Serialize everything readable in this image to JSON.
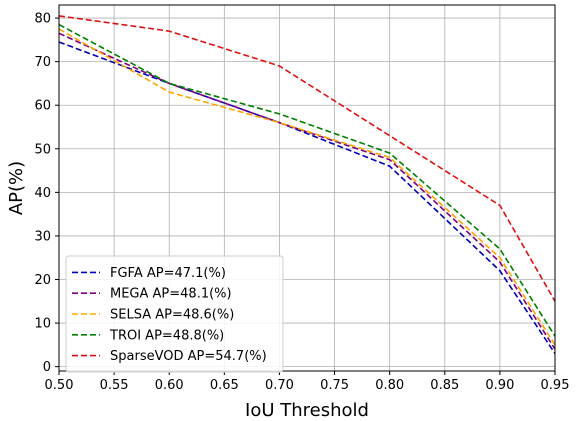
{
  "chart_data": {
    "type": "line",
    "xlabel": "IoU Threshold",
    "ylabel": "AP(%)",
    "xlim": [
      0.5,
      0.95
    ],
    "ylim": [
      -1,
      83
    ],
    "xticks": [
      "0.50",
      "0.55",
      "0.60",
      "0.65",
      "0.70",
      "0.75",
      "0.80",
      "0.85",
      "0.90",
      "0.95"
    ],
    "yticks": [
      "0",
      "10",
      "20",
      "30",
      "40",
      "50",
      "60",
      "70",
      "80"
    ],
    "grid": true,
    "legend_position": "lower-left",
    "x": [
      0.5,
      0.6,
      0.7,
      0.8,
      0.9,
      0.95
    ],
    "series": [
      {
        "name": "FGFA AP=47.1(%)",
        "color": "#0000bb",
        "values": [
          74.5,
          65,
          56,
          46,
          22,
          3
        ]
      },
      {
        "name": "MEGA AP=48.1(%)",
        "color": "#800080",
        "values": [
          76.5,
          65,
          56,
          47.5,
          24,
          4
        ]
      },
      {
        "name": "SELSA AP=48.6(%)",
        "color": "#ffa500",
        "values": [
          77.5,
          63,
          56,
          48,
          25,
          5
        ]
      },
      {
        "name": "TROI AP=48.8(%)",
        "color": "#008000",
        "values": [
          78.5,
          65,
          58,
          49,
          27,
          7
        ]
      },
      {
        "name": "SparseVOD AP=54.7(%)",
        "color": "#dd1111",
        "values": [
          80.5,
          77,
          69,
          53,
          37,
          15
        ]
      }
    ]
  }
}
